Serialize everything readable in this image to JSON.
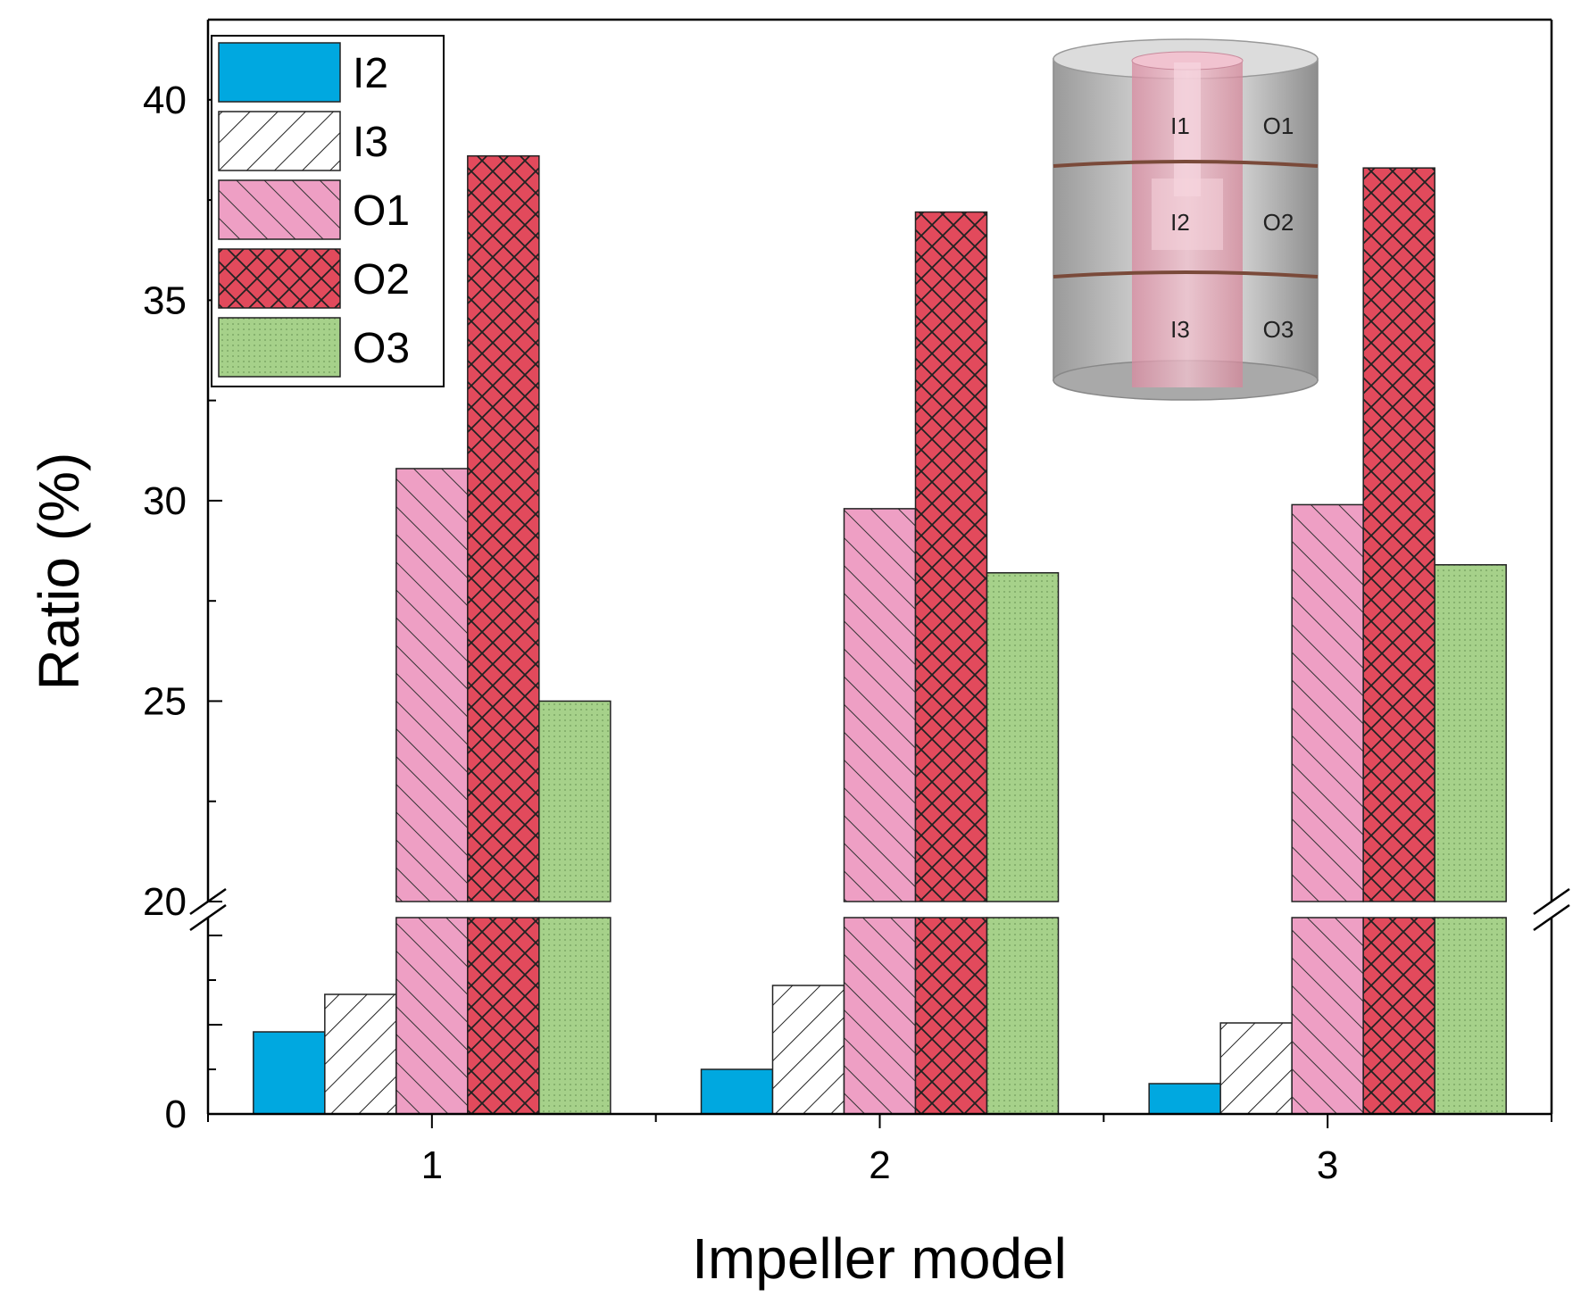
{
  "chart_data": {
    "type": "bar",
    "xlabel": "Impeller model",
    "ylabel": "Ratio (%)",
    "categories": [
      "1",
      "2",
      "3"
    ],
    "series": [
      {
        "name": "I2",
        "color": "#00a8e0",
        "pattern": "solid",
        "values": [
          4.6,
          2.5,
          1.7
        ]
      },
      {
        "name": "I3",
        "color": "#ffffff",
        "pattern": "hatch-forward",
        "values": [
          6.7,
          7.2,
          5.1
        ]
      },
      {
        "name": "O1",
        "color": "#ee9fc4",
        "pattern": "hatch-back",
        "values": [
          30.8,
          29.8,
          29.9
        ]
      },
      {
        "name": "O2",
        "color": "#e24a5c",
        "pattern": "crosshatch",
        "values": [
          38.6,
          37.2,
          38.3
        ]
      },
      {
        "name": "O3",
        "color": "#a6d18a",
        "pattern": "dots",
        "values": [
          25.0,
          28.2,
          28.4
        ]
      }
    ],
    "axis_break": {
      "lower_range": [
        0,
        11
      ],
      "upper_range": [
        20,
        42
      ]
    },
    "lower_ticks": [
      {
        "value": 0,
        "label": "0"
      }
    ],
    "upper_ticks": [
      {
        "value": 20,
        "label": "20"
      },
      {
        "value": 25,
        "label": "25"
      },
      {
        "value": 30,
        "label": "30"
      },
      {
        "value": 35,
        "label": "35"
      },
      {
        "value": 40,
        "label": "40"
      }
    ],
    "legend_position": "top-left",
    "inset": {
      "description": "impeller zone schematic",
      "labels": [
        "I1",
        "O1",
        "I2",
        "O2",
        "I3",
        "O3"
      ]
    }
  }
}
